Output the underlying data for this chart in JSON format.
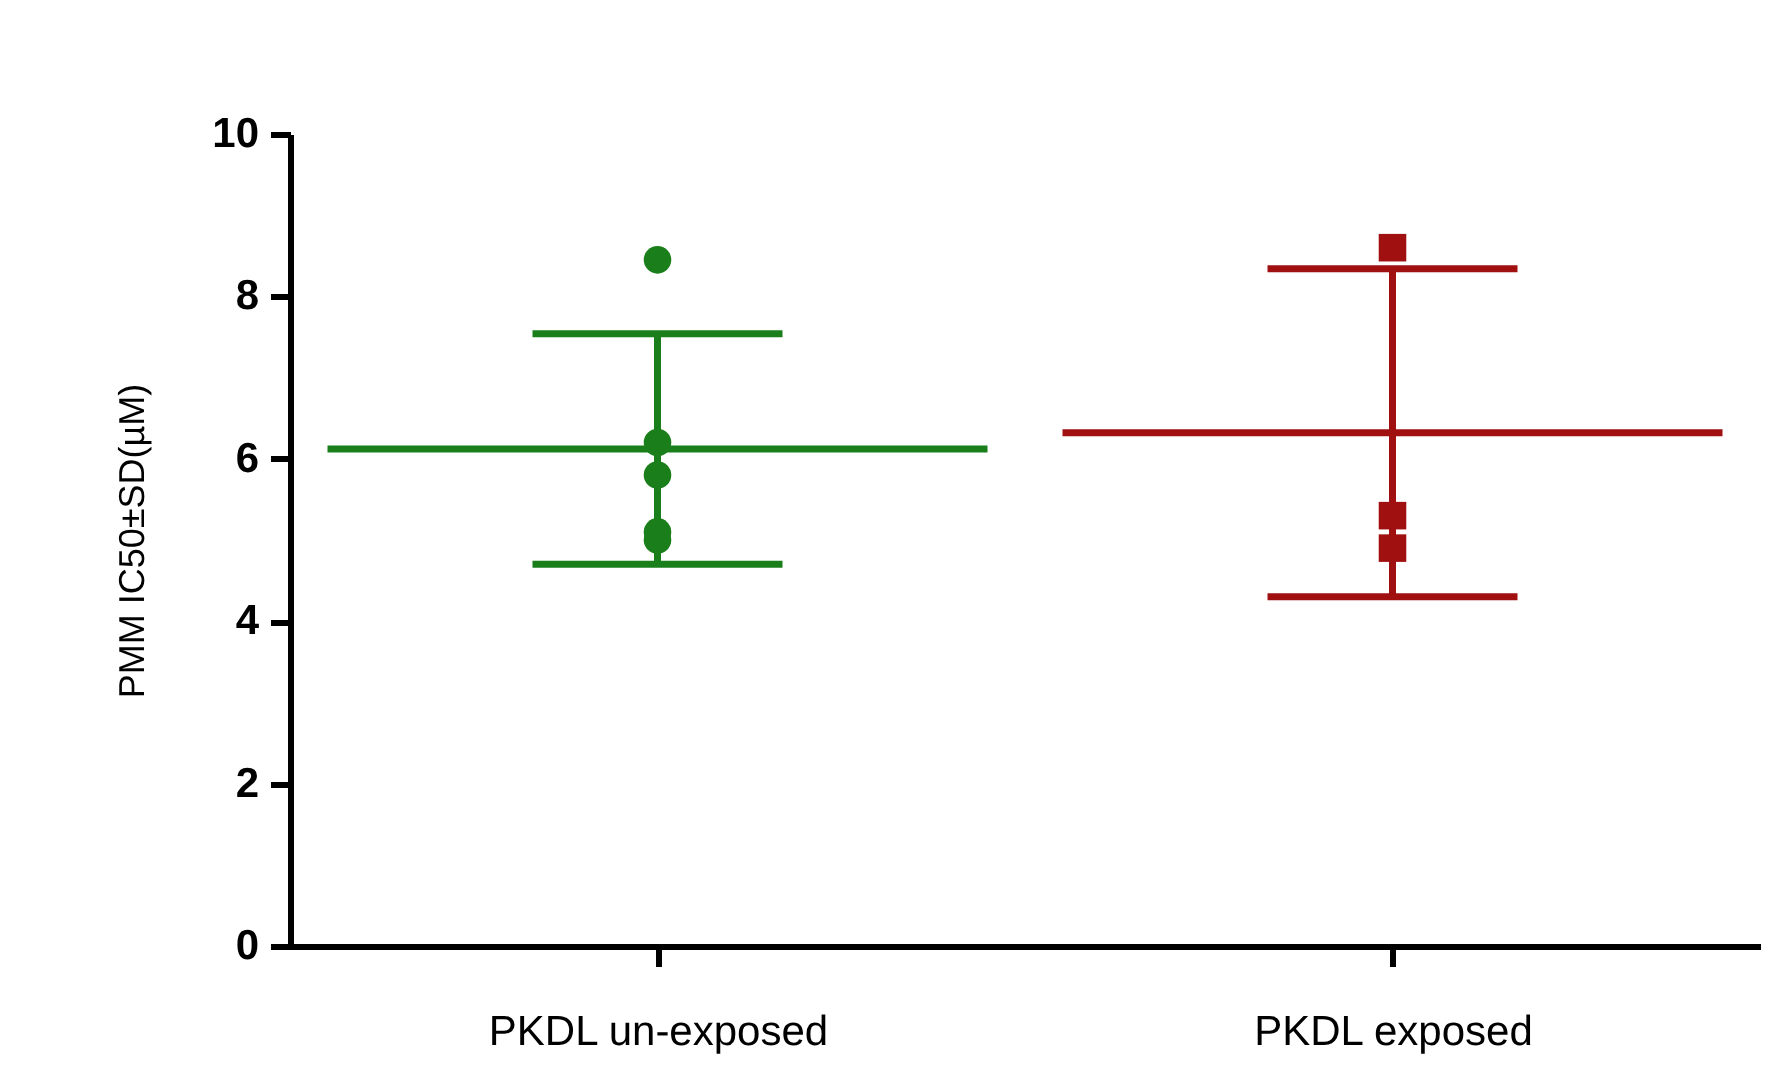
{
  "chart_data": {
    "type": "scatter",
    "ylabel": "PMM IC50±SD(µM)",
    "categories": [
      "PKDL un-exposed",
      "PKDL exposed"
    ],
    "ylim": [
      0,
      10
    ],
    "yticks": [
      0,
      2,
      4,
      6,
      8,
      10
    ],
    "grid": false,
    "legend": false,
    "series": [
      {
        "type": "scatter",
        "marker": "circle",
        "color": "#1a7f1a",
        "x": [
          "PKDL un-exposed",
          "PKDL un-exposed",
          "PKDL un-exposed",
          "PKDL un-exposed",
          "PKDL un-exposed"
        ],
        "values": [
          8.45,
          6.2,
          5.8,
          5.0,
          5.1
        ]
      },
      {
        "type": "scatter",
        "marker": "square",
        "color": "#a01010",
        "x": [
          "PKDL exposed",
          "PKDL exposed",
          "PKDL exposed"
        ],
        "values": [
          8.6,
          4.9,
          5.3
        ]
      },
      {
        "type": "box",
        "colors": [
          "#1a7f1a",
          "#a01010"
        ],
        "x": [
          "PKDL un-exposed",
          "PKDL exposed"
        ],
        "boxes": [
          {
            "low": 4.7,
            "q1": 6.12,
            "median": 6.12,
            "q3": 6.12,
            "high": 7.54
          },
          {
            "low": 4.3,
            "q1": 6.32,
            "median": 6.32,
            "q3": 6.32,
            "high": 8.34
          }
        ]
      }
    ]
  }
}
